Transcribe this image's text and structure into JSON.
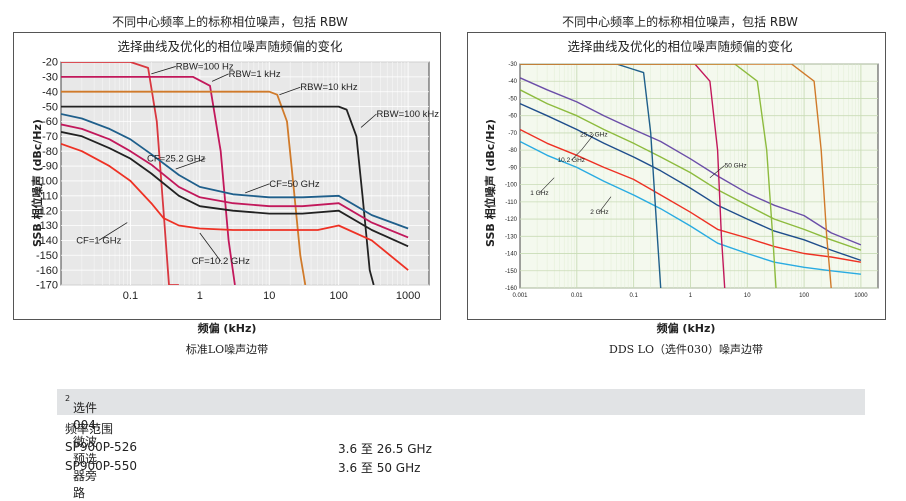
{
  "charts": [
    {
      "title": "不同中心频率上的标称相位噪声，包括 RBW",
      "subtitle": "选择曲线及优化的相位噪声随频偏的变化",
      "xlabel": "频偏 (kHz)",
      "ylabel": "SSB 相位噪声 (dBc/Hz)",
      "caption": "标准LO噪声边带",
      "ytick_labels": [
        "-20",
        "-30",
        "-40",
        "-50",
        "-60",
        "-70",
        "-80",
        "-90",
        "-100",
        "-110",
        "-120",
        "-130",
        "-140",
        "-150",
        "-160",
        "-170"
      ],
      "xtick_labels": [
        "0.1",
        "1",
        "10",
        "100",
        "1000"
      ],
      "annotations": [
        "RBW=100 Hz",
        "RBW=1 kHz",
        "RBW=10 kHz",
        "RBW=100 kHz",
        "CF=25.2 GHz",
        "CF=50 GHz",
        "CF=1 GHz",
        "CF=10.2 GHz"
      ]
    },
    {
      "title": "不同中心频率上的标称相位噪声，包括 RBW",
      "subtitle": "选择曲线及优化的相位噪声随频偏的变化",
      "xlabel": "频偏 (kHz)",
      "ylabel": "SSB 相位噪声 (dBc/Hz)",
      "caption": "DDS LO（选件030）噪声边带",
      "ytick_labels": [
        "-30",
        "-40",
        "-50",
        "-60",
        "-70",
        "-80",
        "-90",
        "-100",
        "-110",
        "-120",
        "-130",
        "-140",
        "-150",
        "-160"
      ],
      "xtick_labels": [
        "0.001",
        "0.01",
        "0.1",
        "1",
        "10",
        "100",
        "1000"
      ],
      "annotations": [
        "25.2 GHz",
        "10.2 GHz",
        "50 GHz",
        "1 GHz",
        "2 GHz"
      ]
    }
  ],
  "chart_data": [
    {
      "type": "line",
      "x_scale": "log",
      "xlim": [
        0.01,
        2000
      ],
      "ylim": [
        -170,
        -20
      ],
      "series": [
        {
          "name": "RBW=100 Hz",
          "color": "#d9373f",
          "x": [
            0.01,
            0.1,
            0.18,
            0.24,
            0.3,
            0.36,
            0.5
          ],
          "y": [
            -20,
            -20,
            -24,
            -60,
            -120,
            -170,
            -170
          ]
        },
        {
          "name": "RBW=1 kHz",
          "color": "#c2185b",
          "x": [
            0.01,
            0.8,
            1.4,
            2.0,
            2.6,
            3.2
          ],
          "y": [
            -30,
            -30,
            -36,
            -80,
            -140,
            -170
          ]
        },
        {
          "name": "RBW=10 kHz",
          "color": "#d07a2a",
          "x": [
            0.01,
            1,
            10,
            13,
            18,
            22,
            28,
            33
          ],
          "y": [
            -40,
            -40,
            -40,
            -42,
            -60,
            -100,
            -150,
            -170
          ]
        },
        {
          "name": "RBW=100 kHz",
          "color": "#222222",
          "x": [
            0.01,
            10,
            100,
            130,
            180,
            220,
            280,
            320
          ],
          "y": [
            -50,
            -50,
            -50,
            -52,
            -70,
            -110,
            -160,
            -170
          ]
        },
        {
          "name": "CF=1 GHz",
          "color": "#ee3124",
          "x": [
            0.01,
            0.02,
            0.05,
            0.1,
            0.2,
            0.3,
            0.5,
            1,
            3,
            10,
            50,
            100,
            300,
            1000
          ],
          "y": [
            -75,
            -80,
            -90,
            -100,
            -115,
            -125,
            -130,
            -132,
            -133,
            -133,
            -133,
            -130,
            -140,
            -160
          ]
        },
        {
          "name": "CF=10.2 GHz",
          "color": "#222222",
          "x": [
            0.01,
            0.02,
            0.05,
            0.1,
            0.2,
            0.5,
            1,
            3,
            10,
            30,
            100,
            300,
            1000
          ],
          "y": [
            -67,
            -70,
            -78,
            -85,
            -95,
            -110,
            -117,
            -120,
            -122,
            -122,
            -120,
            -133,
            -144
          ]
        },
        {
          "name": "CF=25.2 GHz",
          "color": "#c2185b",
          "x": [
            0.01,
            0.02,
            0.05,
            0.1,
            0.2,
            0.5,
            1,
            3,
            10,
            30,
            100,
            300,
            1000
          ],
          "y": [
            -62,
            -65,
            -72,
            -80,
            -89,
            -104,
            -111,
            -115,
            -117,
            -117,
            -115,
            -128,
            -138
          ]
        },
        {
          "name": "CF=50 GHz",
          "color": "#1f5f8b",
          "x": [
            0.01,
            0.02,
            0.05,
            0.1,
            0.2,
            0.5,
            1,
            3,
            10,
            30,
            100,
            300,
            1000
          ],
          "y": [
            -55,
            -58,
            -65,
            -72,
            -82,
            -96,
            -104,
            -109,
            -111,
            -111,
            -110,
            -123,
            -132
          ]
        }
      ]
    },
    {
      "type": "line",
      "x_scale": "log",
      "xlim": [
        0.001,
        2000
      ],
      "ylim": [
        -160,
        -30
      ],
      "series": [
        {
          "name": "50 GHz",
          "color": "#6b4ea8",
          "x": [
            0.001,
            0.003,
            0.01,
            0.03,
            0.1,
            0.3,
            1,
            3,
            10,
            30,
            100,
            300,
            1000
          ],
          "y": [
            -38,
            -45,
            -52,
            -60,
            -68,
            -75,
            -85,
            -95,
            -105,
            -112,
            -118,
            -128,
            -135
          ]
        },
        {
          "name": "25.2 GHz",
          "color": "#8dbb3e",
          "x": [
            0.001,
            0.003,
            0.01,
            0.03,
            0.1,
            0.3,
            1,
            3,
            10,
            30,
            100,
            300,
            1000
          ],
          "y": [
            -45,
            -53,
            -60,
            -68,
            -76,
            -84,
            -93,
            -103,
            -112,
            -120,
            -126,
            -132,
            -138
          ]
        },
        {
          "name": "10.2 GHz",
          "color": "#1f4e8c",
          "x": [
            0.001,
            0.003,
            0.01,
            0.03,
            0.1,
            0.3,
            1,
            3,
            10,
            30,
            100,
            300,
            1000
          ],
          "y": [
            -53,
            -60,
            -68,
            -76,
            -84,
            -92,
            -102,
            -112,
            -120,
            -127,
            -132,
            -138,
            -144
          ]
        },
        {
          "name": "2 GHz",
          "color": "#ee3124",
          "x": [
            0.001,
            0.003,
            0.01,
            0.03,
            0.1,
            0.3,
            1,
            3,
            10,
            30,
            100,
            300,
            1000
          ],
          "y": [
            -68,
            -76,
            -83,
            -90,
            -97,
            -106,
            -116,
            -126,
            -131,
            -136,
            -140,
            -142,
            -145
          ]
        },
        {
          "name": "1 GHz",
          "color": "#29abe2",
          "x": [
            0.001,
            0.003,
            0.01,
            0.03,
            0.1,
            0.3,
            1,
            3,
            10,
            30,
            100,
            300,
            1000
          ],
          "y": [
            -75,
            -83,
            -90,
            -98,
            -106,
            -114,
            -124,
            -134,
            -140,
            -145,
            -148,
            -150,
            -152
          ]
        },
        {
          "name": "",
          "color": "#1f5f8b",
          "x": [
            0.001,
            0.05,
            0.15,
            0.2,
            0.25,
            0.3
          ],
          "y": [
            -30,
            -30,
            -35,
            -70,
            -120,
            -160
          ]
        },
        {
          "name": "",
          "color": "#c2185b",
          "x": [
            0.001,
            1.2,
            2.2,
            3.0,
            3.5,
            4.0
          ],
          "y": [
            -30,
            -30,
            -40,
            -80,
            -130,
            -160
          ]
        },
        {
          "name": "",
          "color": "#8dbb3e",
          "x": [
            0.001,
            6,
            15,
            22,
            28,
            32
          ],
          "y": [
            -30,
            -30,
            -40,
            -80,
            -130,
            -160
          ]
        },
        {
          "name": "",
          "color": "#d07a2a",
          "x": [
            0.001,
            60,
            150,
            200,
            250,
            300
          ],
          "y": [
            -30,
            -30,
            -40,
            -80,
            -130,
            -160
          ]
        }
      ]
    }
  ],
  "table": {
    "header": "选件 004，微波预选器旁路",
    "header_sup": "2",
    "freq_range_label": "频率范围",
    "rows": [
      {
        "model": "SP900P-526",
        "range": "3.6 至 26.5 GHz"
      },
      {
        "model": "SP900P-550",
        "range": "3.6 至 50 GHz"
      }
    ]
  }
}
